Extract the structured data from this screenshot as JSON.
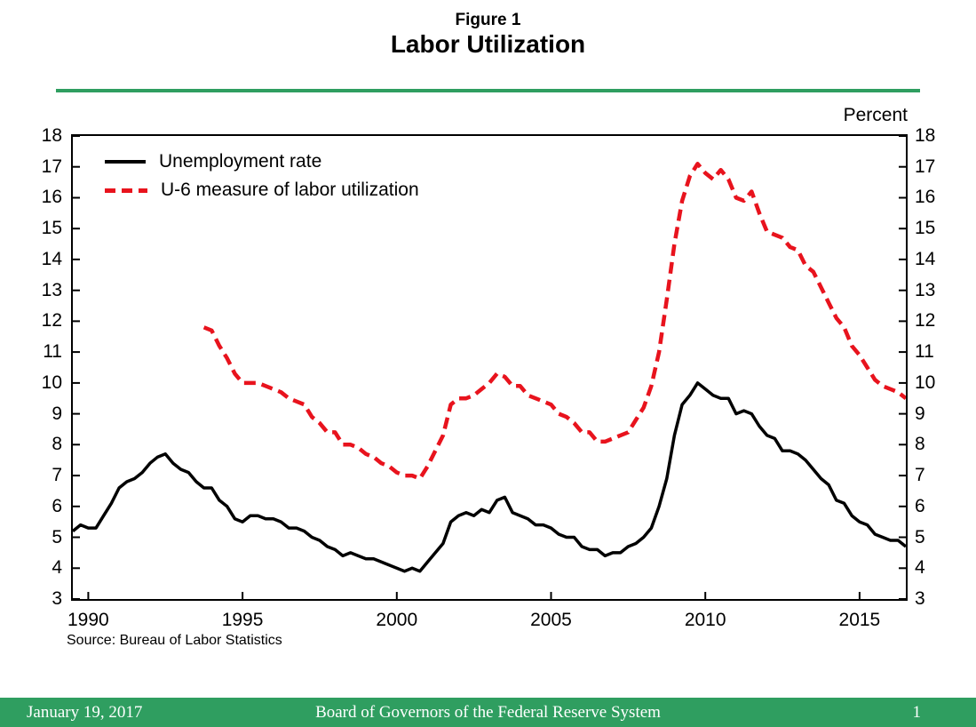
{
  "header": {
    "figure_label": "Figure 1",
    "title": "Labor Utilization"
  },
  "chart": {
    "unit_label": "Percent",
    "source_note": "Source: Bureau of Labor Statistics"
  },
  "footer": {
    "date": "January 19, 2017",
    "organization": "Board of Governors of the Federal Reserve System",
    "page_number": "1"
  },
  "colors": {
    "accent_green": "#2f9e60",
    "unemployment_line": "#000000",
    "u6_line": "#e8131d"
  },
  "chart_data": {
    "type": "line",
    "title": "Labor Utilization",
    "xlabel": "",
    "ylabel": "Percent",
    "xlim": [
      1989.5,
      2016.5
    ],
    "ylim": [
      3,
      18
    ],
    "x_ticks": [
      1990,
      1995,
      2000,
      2005,
      2010,
      2015
    ],
    "y_ticks": [
      3,
      4,
      5,
      6,
      7,
      8,
      9,
      10,
      11,
      12,
      13,
      14,
      15,
      16,
      17,
      18
    ],
    "grid": false,
    "legend_position": "upper-left-inside",
    "series": [
      {
        "name": "Unemployment rate",
        "color": "#000000",
        "style": "solid",
        "width": 3.5,
        "x_start": 1989.5,
        "x_step": 0.25,
        "values": [
          5.2,
          5.4,
          5.3,
          5.3,
          5.7,
          6.1,
          6.6,
          6.8,
          6.9,
          7.1,
          7.4,
          7.6,
          7.7,
          7.4,
          7.2,
          7.1,
          6.8,
          6.6,
          6.6,
          6.2,
          6.0,
          5.6,
          5.5,
          5.7,
          5.7,
          5.6,
          5.6,
          5.5,
          5.3,
          5.3,
          5.2,
          5.0,
          4.9,
          4.7,
          4.6,
          4.4,
          4.5,
          4.4,
          4.3,
          4.3,
          4.2,
          4.1,
          4.0,
          3.9,
          4.0,
          3.9,
          4.2,
          4.5,
          4.8,
          5.5,
          5.7,
          5.8,
          5.7,
          5.9,
          5.8,
          6.2,
          6.3,
          5.8,
          5.7,
          5.6,
          5.4,
          5.4,
          5.3,
          5.1,
          5.0,
          5.0,
          4.7,
          4.6,
          4.6,
          4.4,
          4.5,
          4.5,
          4.7,
          4.8,
          5.0,
          5.3,
          6.0,
          6.9,
          8.3,
          9.3,
          9.6,
          10.0,
          9.8,
          9.6,
          9.5,
          9.5,
          9.0,
          9.1,
          9.0,
          8.6,
          8.3,
          8.2,
          7.8,
          7.8,
          7.7,
          7.5,
          7.2,
          6.9,
          6.7,
          6.2,
          6.1,
          5.7,
          5.5,
          5.4,
          5.1,
          5.0,
          4.9,
          4.9,
          4.7
        ]
      },
      {
        "name": "U-6 measure of labor utilization",
        "color": "#e8131d",
        "style": "dashed",
        "dash": "13 7",
        "width": 4.5,
        "x_start": 1993.75,
        "x_step": 0.25,
        "values": [
          11.8,
          11.7,
          11.2,
          10.8,
          10.3,
          10.0,
          10.0,
          10.0,
          9.9,
          9.8,
          9.7,
          9.5,
          9.4,
          9.3,
          8.9,
          8.7,
          8.4,
          8.4,
          8.0,
          8.0,
          7.9,
          7.7,
          7.6,
          7.4,
          7.3,
          7.1,
          7.0,
          7.0,
          6.9,
          7.3,
          7.8,
          8.3,
          9.3,
          9.5,
          9.5,
          9.6,
          9.8,
          10.0,
          10.3,
          10.2,
          9.9,
          9.9,
          9.6,
          9.5,
          9.4,
          9.3,
          9.0,
          8.9,
          8.7,
          8.4,
          8.4,
          8.1,
          8.1,
          8.2,
          8.3,
          8.4,
          8.8,
          9.2,
          9.9,
          11.0,
          12.7,
          14.5,
          15.9,
          16.7,
          17.1,
          16.8,
          16.6,
          16.9,
          16.6,
          16.0,
          15.9,
          16.2,
          15.5,
          14.9,
          14.8,
          14.7,
          14.4,
          14.3,
          13.8,
          13.6,
          13.1,
          12.6,
          12.1,
          11.8,
          11.2,
          10.9,
          10.5,
          10.1,
          9.9,
          9.8,
          9.7,
          9.5
        ]
      }
    ]
  }
}
